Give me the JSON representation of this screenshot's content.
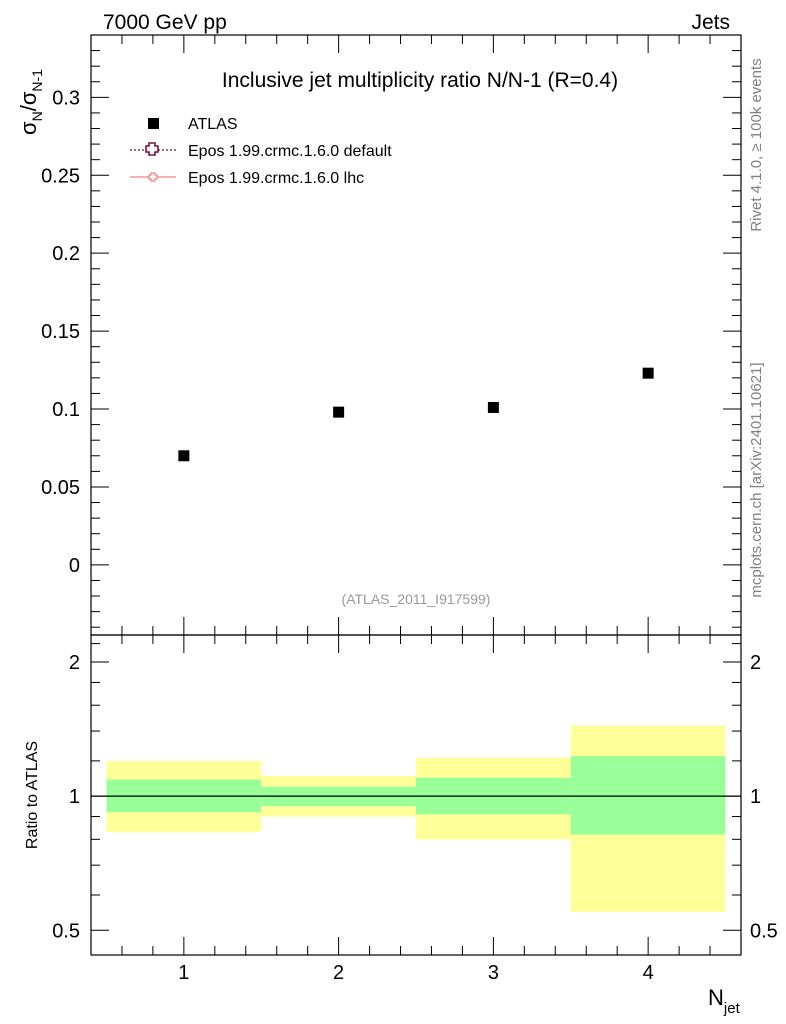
{
  "header": {
    "left": "7000 GeV pp",
    "right": "Jets"
  },
  "side_labels": {
    "top": "Rivet 4.1.0, ≥ 100k events",
    "bottom": "mcplots.cern.ch [arXiv:2401.10621]"
  },
  "legend": {
    "data": "ATLAS",
    "mc1": "Epos 1.99.crmc.1.6.0 default",
    "mc2": "Epos 1.99.crmc.1.6.0 lhc"
  },
  "colors": {
    "data": "#000000",
    "mc1": "#7a1038",
    "mc2": "#f08080",
    "band_inner": "#99ff99",
    "band_outer": "#ffff99"
  },
  "chart_data": [
    {
      "type": "scatter",
      "title": "Inclusive jet multiplicity ratio N/N-1 (R=0.4)",
      "ylabel_main": "σ",
      "ylabel_sub1": "N",
      "ylabel_sep": "/σ",
      "ylabel_sub2": "N-1",
      "xlim": [
        0.4,
        4.6
      ],
      "ylim": [
        -0.045,
        0.34
      ],
      "yticks": [
        0,
        0.05,
        0.1,
        0.15,
        0.2,
        0.25,
        0.3
      ],
      "yticklabels": [
        "0",
        "0.05",
        "0.1",
        "0.15",
        "0.2",
        "0.25",
        "0.3"
      ],
      "series": [
        {
          "name": "ATLAS",
          "x": [
            1,
            2,
            3,
            4
          ],
          "y": [
            0.07,
            0.098,
            0.101,
            0.123
          ]
        }
      ],
      "annotation": "(ATLAS_2011_I917599)"
    },
    {
      "type": "area",
      "ylabel": "Ratio to ATLAS",
      "xlabel_main": "N",
      "xlabel_sub": "jet",
      "scale": "log",
      "ylim": [
        0.44,
        2.3
      ],
      "yticks": [
        0.5,
        1,
        2
      ],
      "yticklabels": [
        "0.5",
        "1",
        "2"
      ],
      "xticks": [
        1,
        2,
        3,
        4
      ],
      "xticklabels": [
        "1",
        "2",
        "3",
        "4"
      ],
      "bins": [
        [
          0.5,
          1.5
        ],
        [
          1.5,
          2.5
        ],
        [
          2.5,
          3.5
        ],
        [
          3.5,
          4.5
        ]
      ],
      "inner_band": [
        [
          0.92,
          1.09
        ],
        [
          0.95,
          1.05
        ],
        [
          0.91,
          1.1
        ],
        [
          0.82,
          1.23
        ]
      ],
      "outer_band": [
        [
          0.83,
          1.2
        ],
        [
          0.9,
          1.11
        ],
        [
          0.8,
          1.22
        ],
        [
          0.55,
          1.44
        ]
      ],
      "reference": 1
    }
  ]
}
